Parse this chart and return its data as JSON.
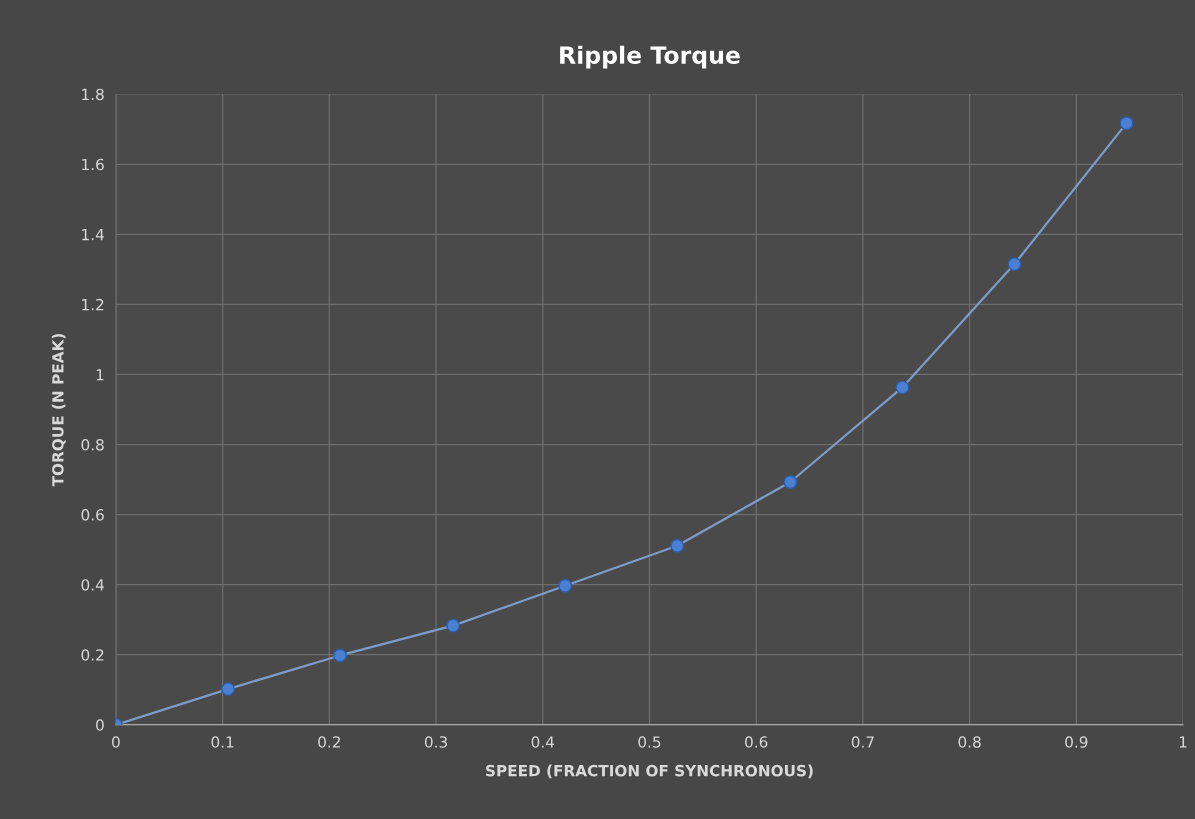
{
  "chart_data": {
    "type": "line",
    "title": "Ripple Torque",
    "xlabel": "SPEED (FRACTION OF SYNCHRONOUS)",
    "ylabel": "TORQUE (N PEAK)",
    "x": [
      0,
      0.105,
      0.21,
      0.316,
      0.421,
      0.526,
      0.632,
      0.737,
      0.842,
      0.947
    ],
    "series": [
      {
        "color": "#4a80d4",
        "values": [
          0,
          0.102,
          0.198,
          0.283,
          0.397,
          0.511,
          0.693,
          0.963,
          1.315,
          1.717
        ]
      }
    ],
    "xlim": [
      0,
      1
    ],
    "xticks": [
      0,
      0.1,
      0.2,
      0.3,
      0.4,
      0.5,
      0.6,
      0.7,
      0.8,
      0.9,
      1
    ],
    "ylim": [
      0,
      1.8
    ],
    "yticks": [
      0,
      0.2,
      0.4,
      0.6,
      0.8,
      1,
      1.2,
      1.4,
      1.6,
      1.8
    ],
    "grid": true,
    "marker": "circle",
    "line_style": "solid"
  }
}
